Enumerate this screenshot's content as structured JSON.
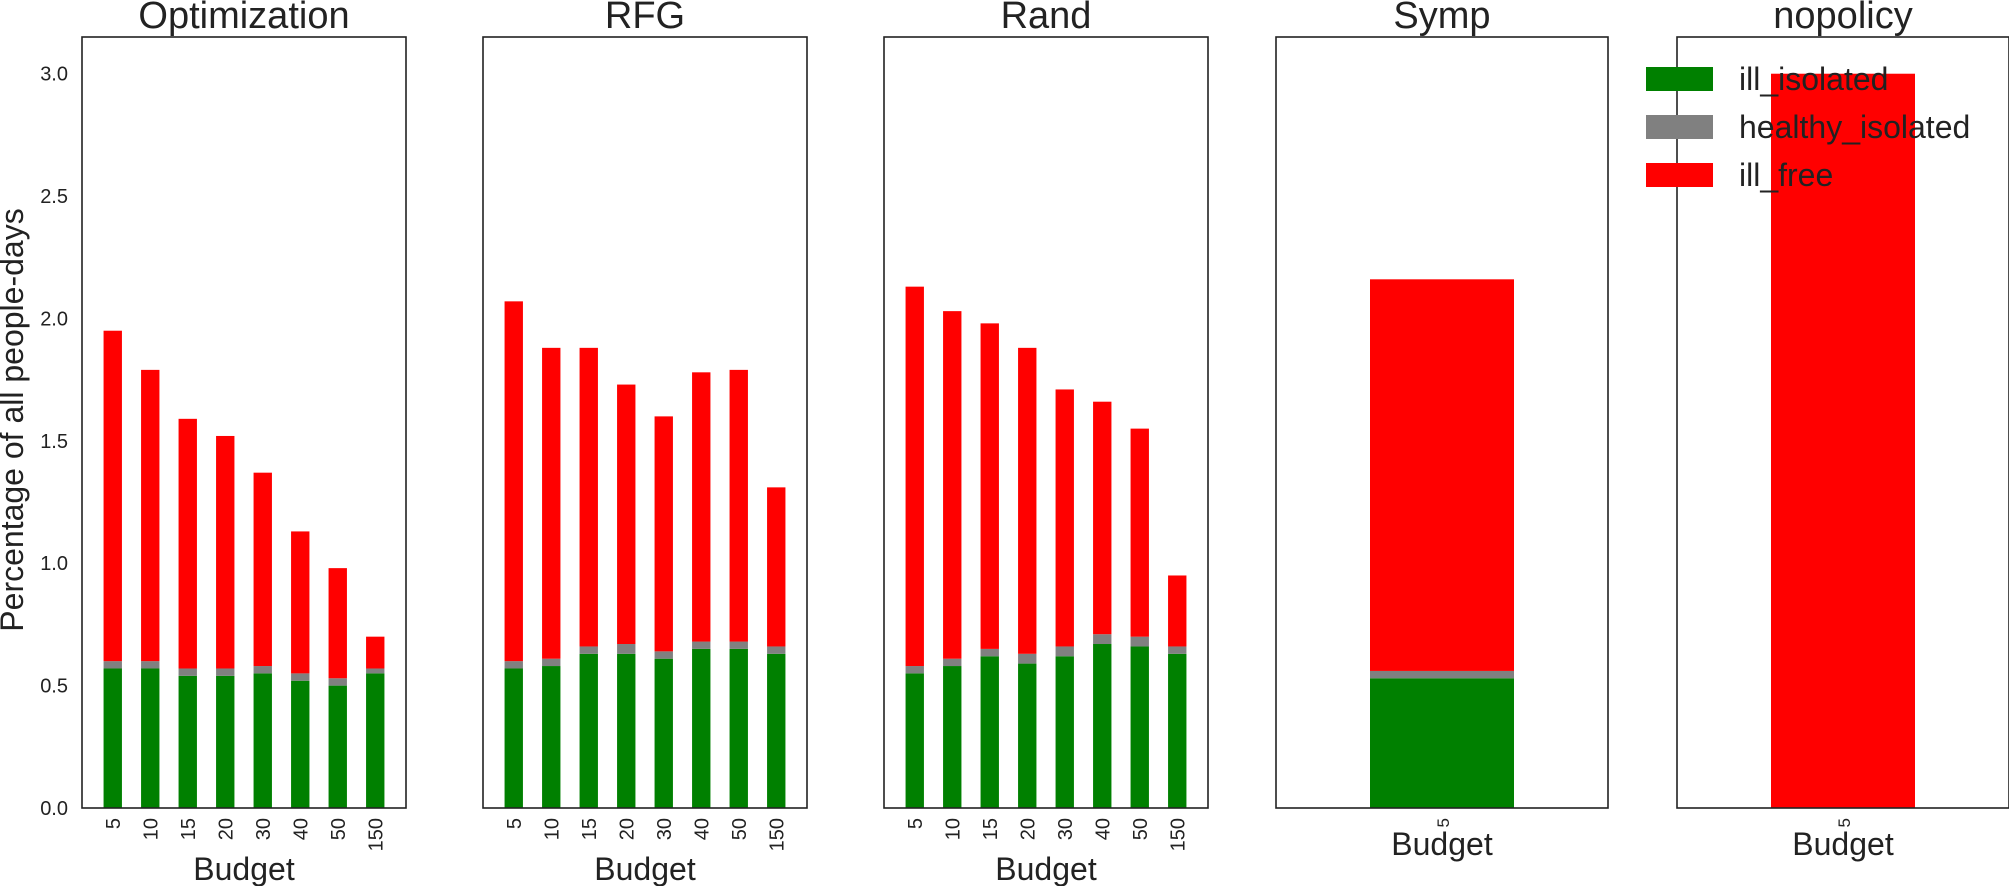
{
  "figure": {
    "ylabel": "Percentage of all people-days",
    "yticks": [
      "0.0",
      "0.5",
      "1.0",
      "1.5",
      "2.0",
      "2.5",
      "3.0"
    ]
  },
  "legend": {
    "entries": [
      {
        "name": "ill_isolated",
        "color": "#008000"
      },
      {
        "name": "healthy_isolated",
        "color": "#808080"
      },
      {
        "name": "ill_free",
        "color": "#ff0000"
      }
    ]
  },
  "chart_data": [
    {
      "type": "bar",
      "stacked": true,
      "title": "Optimization",
      "xlabel": "Budget",
      "ylim": [
        0,
        3.15
      ],
      "categories": [
        "5",
        "10",
        "15",
        "20",
        "30",
        "40",
        "50",
        "150"
      ],
      "series": [
        {
          "name": "ill_isolated",
          "values": [
            0.57,
            0.57,
            0.54,
            0.54,
            0.55,
            0.52,
            0.5,
            0.55
          ]
        },
        {
          "name": "healthy_isolated",
          "values": [
            0.03,
            0.03,
            0.03,
            0.03,
            0.03,
            0.03,
            0.03,
            0.02
          ]
        },
        {
          "name": "ill_free",
          "values": [
            1.35,
            1.19,
            1.02,
            0.95,
            0.79,
            0.58,
            0.45,
            0.13
          ]
        }
      ]
    },
    {
      "type": "bar",
      "stacked": true,
      "title": "RFG",
      "xlabel": "Budget",
      "ylim": [
        0,
        3.15
      ],
      "categories": [
        "5",
        "10",
        "15",
        "20",
        "30",
        "40",
        "50",
        "150"
      ],
      "series": [
        {
          "name": "ill_isolated",
          "values": [
            0.57,
            0.58,
            0.63,
            0.63,
            0.61,
            0.65,
            0.65,
            0.63
          ]
        },
        {
          "name": "healthy_isolated",
          "values": [
            0.03,
            0.03,
            0.03,
            0.04,
            0.03,
            0.03,
            0.03,
            0.03
          ]
        },
        {
          "name": "ill_free",
          "values": [
            1.47,
            1.27,
            1.22,
            1.06,
            0.96,
            1.1,
            1.11,
            0.65
          ]
        }
      ]
    },
    {
      "type": "bar",
      "stacked": true,
      "title": "Rand",
      "xlabel": "Budget",
      "ylim": [
        0,
        3.15
      ],
      "categories": [
        "5",
        "10",
        "15",
        "20",
        "30",
        "40",
        "50",
        "150"
      ],
      "series": [
        {
          "name": "ill_isolated",
          "values": [
            0.55,
            0.58,
            0.62,
            0.59,
            0.62,
            0.67,
            0.66,
            0.63
          ]
        },
        {
          "name": "healthy_isolated",
          "values": [
            0.03,
            0.03,
            0.03,
            0.04,
            0.04,
            0.04,
            0.04,
            0.03
          ]
        },
        {
          "name": "ill_free",
          "values": [
            1.55,
            1.42,
            1.33,
            1.25,
            1.05,
            0.95,
            0.85,
            0.29
          ]
        }
      ]
    },
    {
      "type": "bar",
      "stacked": true,
      "title": "Symp",
      "xlabel": "Budget",
      "ylim": [
        0,
        3.15
      ],
      "categories": [
        "5"
      ],
      "series": [
        {
          "name": "ill_isolated",
          "values": [
            0.53
          ]
        },
        {
          "name": "healthy_isolated",
          "values": [
            0.03
          ]
        },
        {
          "name": "ill_free",
          "values": [
            1.6
          ]
        }
      ]
    },
    {
      "type": "bar",
      "stacked": true,
      "title": "nopolicy",
      "xlabel": "Budget",
      "ylim": [
        0,
        3.15
      ],
      "categories": [
        "5"
      ],
      "series": [
        {
          "name": "ill_isolated",
          "values": [
            0
          ]
        },
        {
          "name": "healthy_isolated",
          "values": [
            0
          ]
        },
        {
          "name": "ill_free",
          "values": [
            3.0
          ]
        }
      ]
    }
  ]
}
